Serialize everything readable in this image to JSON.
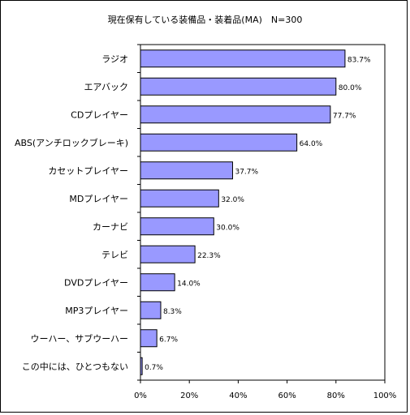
{
  "chart_data": {
    "type": "bar",
    "orientation": "horizontal",
    "title": "現在保有している装備品・装着品(MA)　N=300",
    "xlabel": "",
    "ylabel": "",
    "xlim": [
      0,
      100
    ],
    "x_ticks": [
      "0%",
      "20%",
      "40%",
      "60%",
      "80%",
      "100%"
    ],
    "categories": [
      "ラジオ",
      "エアバック",
      "CDプレイヤー",
      "ABS(アンチロックブレーキ)",
      "カセットプレイヤー",
      "MDプレイヤー",
      "カーナビ",
      "テレビ",
      "DVDプレイヤー",
      "MP3プレイヤー",
      "ウーハー、サブウーハー",
      "この中には、ひとつもない"
    ],
    "values": [
      83.7,
      80.0,
      77.7,
      64.0,
      37.7,
      32.0,
      30.0,
      22.3,
      14.0,
      8.3,
      6.7,
      0.7
    ],
    "value_labels": [
      "83.7%",
      "80.0%",
      "77.7%",
      "64.0%",
      "37.7%",
      "32.0%",
      "30.0%",
      "22.3%",
      "14.0%",
      "8.3%",
      "6.7%",
      "0.7%"
    ],
    "grid": false,
    "legend": "none",
    "bar_color": "#9999ff",
    "bar_edge_color": "#000000"
  }
}
